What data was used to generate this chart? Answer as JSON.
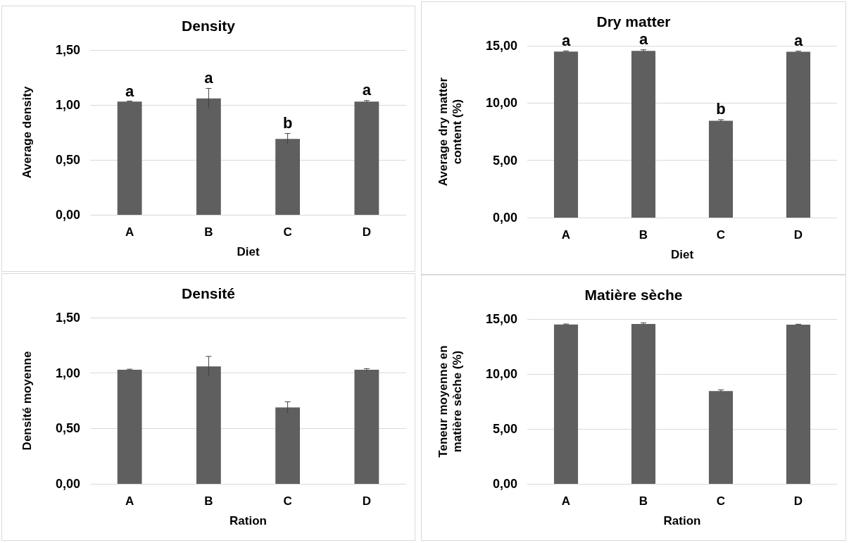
{
  "chart_data": [
    {
      "type": "bar",
      "title": "Density",
      "xlabel": "Diet",
      "ylabel": "Average density",
      "categories": [
        "A",
        "B",
        "C",
        "D"
      ],
      "values": [
        1.03,
        1.06,
        0.69,
        1.03
      ],
      "errors": [
        0.005,
        0.09,
        0.05,
        0.01
      ],
      "color": "#5f5f5f",
      "ylim": [
        0,
        1.5
      ],
      "yticks": [
        {
          "value": 0,
          "label": "0,00"
        },
        {
          "value": 0.5,
          "label": "0,50"
        },
        {
          "value": 1,
          "label": "1,00"
        },
        {
          "value": 1.5,
          "label": "1,50"
        }
      ],
      "grid": "y",
      "annotations": [
        {
          "text": "a",
          "x": "A",
          "y": 1.03
        },
        {
          "text": "a",
          "x": "B",
          "y": 1.15
        },
        {
          "text": "b",
          "x": "C",
          "y": 0.74
        },
        {
          "text": "a",
          "x": "D",
          "y": 1.04
        }
      ]
    },
    {
      "type": "bar",
      "title": "Dry matter",
      "xlabel": "Diet",
      "ylabel": "Average dry matter content (%)",
      "categories": [
        "A",
        "B",
        "C",
        "D"
      ],
      "values": [
        14.5,
        14.55,
        8.45,
        14.48
      ],
      "errors": [
        0.05,
        0.1,
        0.1,
        0.05
      ],
      "color": "#5f5f5f",
      "ylim": [
        0,
        15
      ],
      "yticks": [
        {
          "value": 0,
          "label": "0,00"
        },
        {
          "value": 5,
          "label": "5,00"
        },
        {
          "value": 10,
          "label": "10,00"
        },
        {
          "value": 15,
          "label": "15,00"
        }
      ],
      "grid": "y",
      "annotations": [
        {
          "text": "a",
          "x": "A",
          "y": 14.55
        },
        {
          "text": "a",
          "x": "B",
          "y": 14.65
        },
        {
          "text": "b",
          "x": "C",
          "y": 8.55
        },
        {
          "text": "a",
          "x": "D",
          "y": 14.53
        }
      ]
    },
    {
      "type": "bar",
      "title": "Densité",
      "xlabel": "Ration",
      "ylabel": "Densité moyenne",
      "categories": [
        "A",
        "B",
        "C",
        "D"
      ],
      "values": [
        1.03,
        1.06,
        0.69,
        1.03
      ],
      "errors": [
        0.005,
        0.09,
        0.05,
        0.01
      ],
      "color": "#5f5f5f",
      "ylim": [
        0,
        1.5
      ],
      "yticks": [
        {
          "value": 0,
          "label": "0,00"
        },
        {
          "value": 0.5,
          "label": "0,50"
        },
        {
          "value": 1,
          "label": "1,00"
        },
        {
          "value": 1.5,
          "label": "1,50"
        }
      ],
      "grid": "y"
    },
    {
      "type": "bar",
      "title": "Matière sèche",
      "xlabel": "Ration",
      "ylabel": "Teneur moyenne en matière sèche (%)",
      "categories": [
        "A",
        "B",
        "C",
        "D"
      ],
      "values": [
        14.5,
        14.55,
        8.45,
        14.48
      ],
      "errors": [
        0.05,
        0.1,
        0.1,
        0.05
      ],
      "color": "#5f5f5f",
      "ylim": [
        0,
        15
      ],
      "yticks": [
        {
          "value": 0,
          "label": "0,00"
        },
        {
          "value": 5,
          "label": "5,00"
        },
        {
          "value": 10,
          "label": "10,00"
        },
        {
          "value": 15,
          "label": "15,00"
        }
      ],
      "grid": "y"
    }
  ]
}
